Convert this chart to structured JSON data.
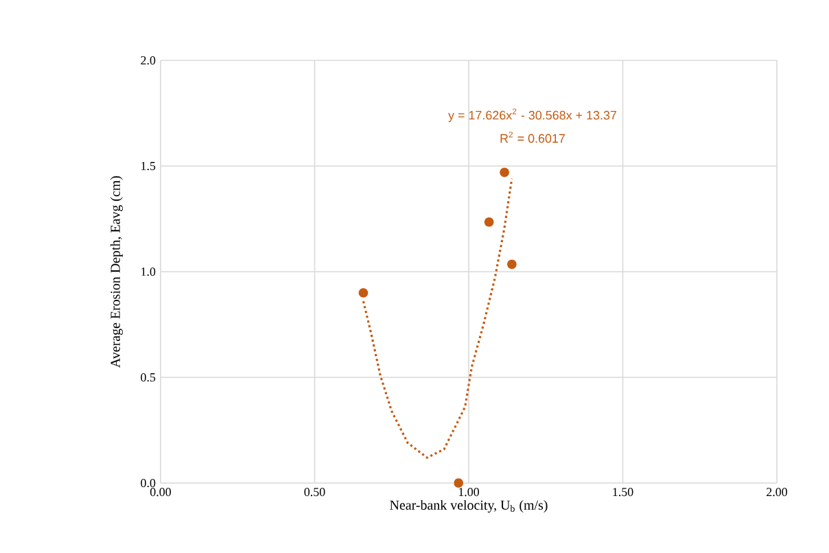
{
  "chart_data": {
    "type": "scatter",
    "xlabel": "Near-bank velocity, U$_{b}$ (m/s)",
    "ylabel": "Average Erosion Depth, Eavg (cm)",
    "xlim": [
      0,
      2
    ],
    "ylim": [
      0,
      2
    ],
    "xticks": [
      {
        "value": 0,
        "label": "0.00"
      },
      {
        "value": 0.5,
        "label": "0.50"
      },
      {
        "value": 1,
        "label": "1.00"
      },
      {
        "value": 1.5,
        "label": "1.50"
      },
      {
        "value": 2,
        "label": "2.00"
      }
    ],
    "yticks": [
      {
        "value": 0,
        "label": "0.0"
      },
      {
        "value": 0.5,
        "label": "0.5"
      },
      {
        "value": 1,
        "label": "1.0"
      },
      {
        "value": 1.5,
        "label": "1.5"
      },
      {
        "value": 2,
        "label": "2.0"
      }
    ],
    "grid": true,
    "marker": "circle",
    "series": [
      {
        "color": "#c55a11",
        "x": [
          0.658,
          0.967,
          1.066,
          1.116,
          1.14
        ],
        "values": [
          0.9,
          0,
          1.235,
          1.47,
          1.035
        ]
      },
      {
        "type": "line",
        "color": "#c55a11",
        "line_style": "dotted",
        "marker": "none",
        "x": [
          0.658,
          0.683,
          0.713,
          0.75,
          0.802,
          0.865,
          0.92,
          0.988,
          1.01,
          1.048,
          1.085,
          1.115,
          1.14
        ],
        "values": [
          0.86,
          0.71,
          0.51,
          0.34,
          0.19,
          0.12,
          0.16,
          0.36,
          0.55,
          0.75,
          0.97,
          1.2,
          1.44
        ]
      }
    ],
    "annotations": [
      "y = 17.626x$^{2}$ - 30.568x + 13.37",
      "R$^{2}$ = 0.6017"
    ]
  }
}
